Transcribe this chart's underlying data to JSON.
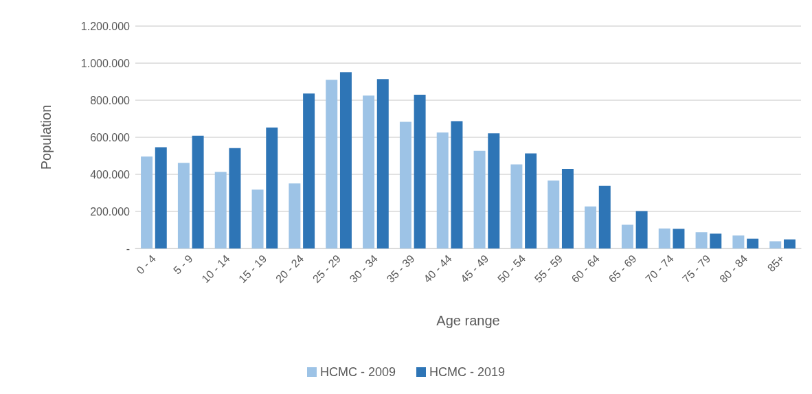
{
  "chart_data": {
    "type": "bar",
    "xlabel": "Age range",
    "ylabel": "Population",
    "categories": [
      "0 - 4",
      "5 - 9",
      "10 - 14",
      "15 - 19",
      "20 - 24",
      "25 - 29",
      "30 - 34",
      "35 - 39",
      "40 - 44",
      "45 - 49",
      "50 - 54",
      "55 - 59",
      "60 - 64",
      "65 - 69",
      "70 - 74",
      "75 - 79",
      "80 - 84",
      "85+"
    ],
    "series": [
      {
        "name": "HCMC - 2009",
        "color": "#9dc3e6",
        "values": [
          496000,
          462000,
          413000,
          318000,
          351000,
          910000,
          825000,
          683000,
          626000,
          527000,
          454000,
          367000,
          227000,
          128000,
          108000,
          88000,
          70000,
          39000
        ]
      },
      {
        "name": "HCMC - 2019",
        "color": "#2e75b6",
        "values": [
          546000,
          608000,
          542000,
          653000,
          836000,
          951000,
          914000,
          830000,
          687000,
          621000,
          513000,
          430000,
          338000,
          202000,
          106000,
          80000,
          53000,
          49000
        ]
      }
    ],
    "ylim": [
      0,
      1200000
    ],
    "yticks": [
      {
        "value": 0,
        "label": "-"
      },
      {
        "value": 200000,
        "label": "200.000"
      },
      {
        "value": 400000,
        "label": "400.000"
      },
      {
        "value": 600000,
        "label": "600.000"
      },
      {
        "value": 800000,
        "label": "800.000"
      },
      {
        "value": 1000000,
        "label": "1.000.000"
      },
      {
        "value": 1200000,
        "label": "1.200.000"
      }
    ],
    "grid": "y",
    "legend": "bottom"
  }
}
